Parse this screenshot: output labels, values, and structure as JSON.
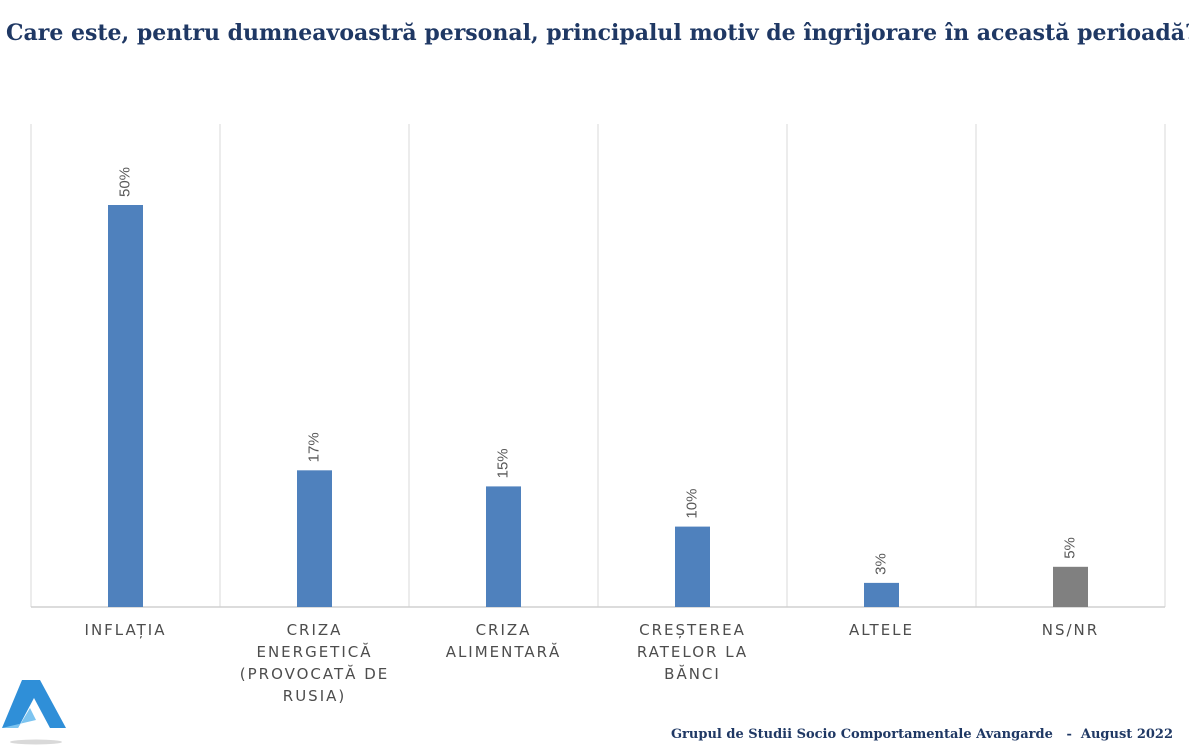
{
  "title": "Care este, pentru dumneavoastră personal, principalul motiv de îngrijorare în această perioadă?",
  "footer": "Grupul de Studii Socio Comportamentale Avangarde   -  August 2022",
  "logo_icon": "triangle-a-logo-icon",
  "colors": {
    "bar_primary": "#4f81bd",
    "bar_other": "#808080",
    "title": "#1f3864"
  },
  "chart_data": {
    "type": "bar",
    "title": "Care este, pentru dumneavoastră personal, principalul motiv de îngrijorare în această perioadă?",
    "xlabel": "",
    "ylabel": "",
    "ylim": [
      0,
      60
    ],
    "grid": "vertical separators",
    "categories": [
      [
        "INFLAȚIA"
      ],
      [
        "CRIZA",
        "ENERGETICĂ",
        "(PROVOCATĂ DE",
        "RUSIA)"
      ],
      [
        "CRIZA",
        "ALIMENTARĂ"
      ],
      [
        "CREȘTEREA",
        "RATELOR LA",
        "BĂNCI"
      ],
      [
        "ALTELE"
      ],
      [
        "NS/NR"
      ]
    ],
    "values": [
      50,
      17,
      15,
      10,
      3,
      5
    ],
    "data_labels": [
      "50%",
      "17%",
      "15%",
      "10%",
      "3%",
      "5%"
    ],
    "bar_colors": [
      "#4f81bd",
      "#4f81bd",
      "#4f81bd",
      "#4f81bd",
      "#4f81bd",
      "#808080"
    ]
  }
}
